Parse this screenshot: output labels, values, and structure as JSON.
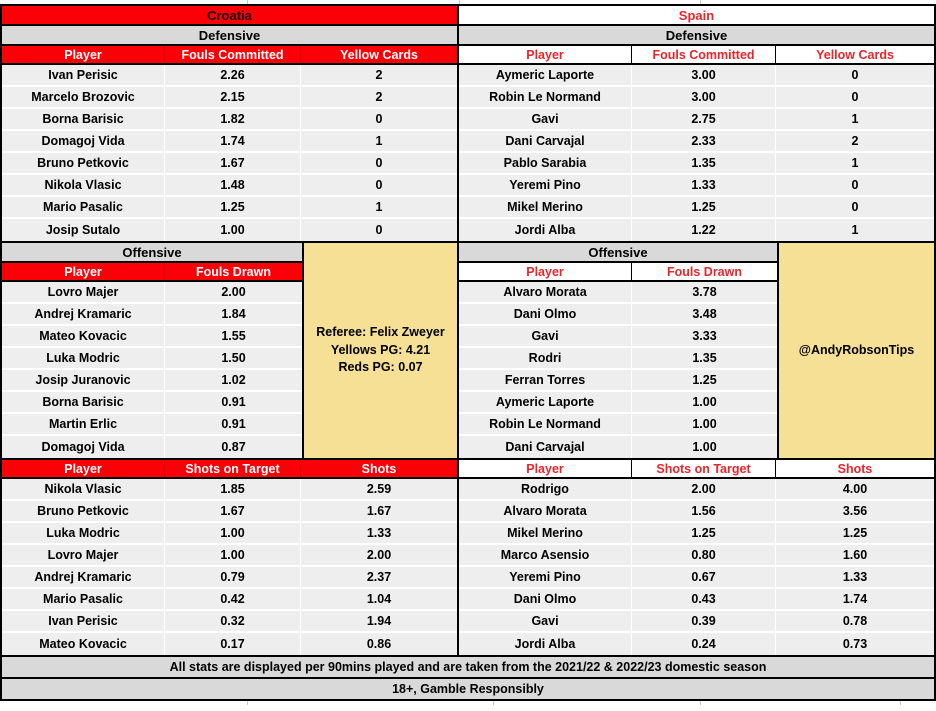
{
  "colors": {
    "header_red": "#fa0007",
    "red_text": "#e9252b",
    "section_gray": "#d9d9d9",
    "row_gray": "#eeeeee",
    "note_yellow": "#f6e096",
    "border_black": "#000000"
  },
  "croatia": {
    "title": "Croatia",
    "defensive_label": "Defensive",
    "offensive_label": "Offensive"
  },
  "spain": {
    "title": "Spain",
    "defensive_label": "Defensive",
    "offensive_label": "Offensive"
  },
  "referee_box": {
    "line1": "Referee: Felix Zweyer",
    "line2": "Yellows PG: 4.21",
    "line3": "Reds PG: 0.07"
  },
  "handle_box": {
    "text": "@AndyRobsonTips"
  },
  "footer": {
    "stats_note": "All stats are displayed per 90mins played and are taken from the 2021/22 & 2022/23 domestic season",
    "disclaimer": "18+, Gamble Responsibly"
  },
  "chart_data": [
    {
      "type": "table",
      "title": "Croatia Defensive",
      "columns": [
        "Player",
        "Fouls Committed",
        "Yellow Cards"
      ],
      "rows": [
        [
          "Ivan Perisic",
          "2.26",
          "2"
        ],
        [
          "Marcelo Brozovic",
          "2.15",
          "2"
        ],
        [
          "Borna Barisic",
          "1.82",
          "0"
        ],
        [
          "Domagoj Vida",
          "1.74",
          "1"
        ],
        [
          "Bruno Petkovic",
          "1.67",
          "0"
        ],
        [
          "Nikola Vlasic",
          "1.48",
          "0"
        ],
        [
          "Mario Pasalic",
          "1.25",
          "1"
        ],
        [
          "Josip Sutalo",
          "1.00",
          "0"
        ]
      ]
    },
    {
      "type": "table",
      "title": "Croatia Offensive",
      "columns": [
        "Player",
        "Fouls Drawn"
      ],
      "rows": [
        [
          "Lovro Majer",
          "2.00"
        ],
        [
          "Andrej Kramaric",
          "1.84"
        ],
        [
          "Mateo Kovacic",
          "1.55"
        ],
        [
          "Luka Modric",
          "1.50"
        ],
        [
          "Josip Juranovic",
          "1.02"
        ],
        [
          "Borna Barisic",
          "0.91"
        ],
        [
          "Martin Erlic",
          "0.91"
        ],
        [
          "Domagoj Vida",
          "0.87"
        ]
      ]
    },
    {
      "type": "table",
      "title": "Croatia Shooting",
      "columns": [
        "Player",
        "Shots on Target",
        "Shots"
      ],
      "rows": [
        [
          "Nikola Vlasic",
          "1.85",
          "2.59"
        ],
        [
          "Bruno Petkovic",
          "1.67",
          "1.67"
        ],
        [
          "Luka Modric",
          "1.00",
          "1.33"
        ],
        [
          "Lovro Majer",
          "1.00",
          "2.00"
        ],
        [
          "Andrej Kramaric",
          "0.79",
          "2.37"
        ],
        [
          "Mario Pasalic",
          "0.42",
          "1.04"
        ],
        [
          "Ivan Perisic",
          "0.32",
          "1.94"
        ],
        [
          "Mateo Kovacic",
          "0.17",
          "0.86"
        ]
      ]
    },
    {
      "type": "table",
      "title": "Spain Defensive",
      "columns": [
        "Player",
        "Fouls Committed",
        "Yellow Cards"
      ],
      "rows": [
        [
          "Aymeric Laporte",
          "3.00",
          "0"
        ],
        [
          "Robin Le Normand",
          "3.00",
          "0"
        ],
        [
          "Gavi",
          "2.75",
          "1"
        ],
        [
          "Dani Carvajal",
          "2.33",
          "2"
        ],
        [
          "Pablo Sarabia",
          "1.35",
          "1"
        ],
        [
          "Yeremi Pino",
          "1.33",
          "0"
        ],
        [
          "Mikel Merino",
          "1.25",
          "0"
        ],
        [
          "Jordi Alba",
          "1.22",
          "1"
        ]
      ]
    },
    {
      "type": "table",
      "title": "Spain Offensive",
      "columns": [
        "Player",
        "Fouls Drawn"
      ],
      "rows": [
        [
          "Alvaro Morata",
          "3.78"
        ],
        [
          "Dani Olmo",
          "3.48"
        ],
        [
          "Gavi",
          "3.33"
        ],
        [
          "Rodri",
          "1.35"
        ],
        [
          "Ferran Torres",
          "1.25"
        ],
        [
          "Aymeric Laporte",
          "1.00"
        ],
        [
          "Robin Le Normand",
          "1.00"
        ],
        [
          "Dani Carvajal",
          "1.00"
        ]
      ]
    },
    {
      "type": "table",
      "title": "Spain Shooting",
      "columns": [
        "Player",
        "Shots on Target",
        "Shots"
      ],
      "rows": [
        [
          "Rodrigo",
          "2.00",
          "4.00"
        ],
        [
          "Alvaro Morata",
          "1.56",
          "3.56"
        ],
        [
          "Mikel Merino",
          "1.25",
          "1.25"
        ],
        [
          "Marco Asensio",
          "0.80",
          "1.60"
        ],
        [
          "Yeremi Pino",
          "0.67",
          "1.33"
        ],
        [
          "Dani Olmo",
          "0.43",
          "1.74"
        ],
        [
          "Gavi",
          "0.39",
          "0.78"
        ],
        [
          "Jordi Alba",
          "0.24",
          "0.73"
        ]
      ]
    }
  ]
}
